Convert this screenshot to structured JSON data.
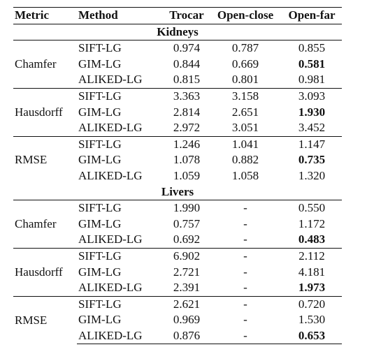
{
  "headers": {
    "metric": "Metric",
    "method": "Method",
    "trocar": "Trocar",
    "open_close": "Open-close",
    "open_far": "Open-far"
  },
  "sections": [
    {
      "title": "Kidneys",
      "groups": [
        {
          "metric": "Chamfer",
          "rows": [
            {
              "method": "SIFT-LG",
              "trocar": "0.974",
              "open_close": "0.787",
              "open_far": "0.855",
              "bold_open_far": false
            },
            {
              "method": "GIM-LG",
              "trocar": "0.844",
              "open_close": "0.669",
              "open_far": "0.581",
              "bold_open_far": true
            },
            {
              "method": "ALIKED-LG",
              "trocar": "0.815",
              "open_close": "0.801",
              "open_far": "0.981",
              "bold_open_far": false
            }
          ]
        },
        {
          "metric": "Hausdorff",
          "rows": [
            {
              "method": "SIFT-LG",
              "trocar": "3.363",
              "open_close": "3.158",
              "open_far": "3.093",
              "bold_open_far": false
            },
            {
              "method": "GIM-LG",
              "trocar": "2.814",
              "open_close": "2.651",
              "open_far": "1.930",
              "bold_open_far": true
            },
            {
              "method": "ALIKED-LG",
              "trocar": "2.972",
              "open_close": "3.051",
              "open_far": "3.452",
              "bold_open_far": false
            }
          ]
        },
        {
          "metric": "RMSE",
          "rows": [
            {
              "method": "SIFT-LG",
              "trocar": "1.246",
              "open_close": "1.041",
              "open_far": "1.147",
              "bold_open_far": false
            },
            {
              "method": "GIM-LG",
              "trocar": "1.078",
              "open_close": "0.882",
              "open_far": "0.735",
              "bold_open_far": true
            },
            {
              "method": "ALIKED-LG",
              "trocar": "1.059",
              "open_close": "1.058",
              "open_far": "1.320",
              "bold_open_far": false
            }
          ]
        }
      ]
    },
    {
      "title": "Livers",
      "groups": [
        {
          "metric": "Chamfer",
          "rows": [
            {
              "method": "SIFT-LG",
              "trocar": "1.990",
              "open_close": "-",
              "open_far": "0.550",
              "bold_open_far": false
            },
            {
              "method": "GIM-LG",
              "trocar": "0.757",
              "open_close": "-",
              "open_far": "1.172",
              "bold_open_far": false
            },
            {
              "method": "ALIKED-LG",
              "trocar": "0.692",
              "open_close": "-",
              "open_far": "0.483",
              "bold_open_far": true
            }
          ]
        },
        {
          "metric": "Hausdorff",
          "rows": [
            {
              "method": "SIFT-LG",
              "trocar": "6.902",
              "open_close": "-",
              "open_far": "2.112",
              "bold_open_far": false
            },
            {
              "method": "GIM-LG",
              "trocar": "2.721",
              "open_close": "-",
              "open_far": "4.181",
              "bold_open_far": false
            },
            {
              "method": "ALIKED-LG",
              "trocar": "2.391",
              "open_close": "-",
              "open_far": "1.973",
              "bold_open_far": true
            }
          ]
        },
        {
          "metric": "RMSE",
          "rows": [
            {
              "method": "SIFT-LG",
              "trocar": "2.621",
              "open_close": "-",
              "open_far": "0.720",
              "bold_open_far": false
            },
            {
              "method": "GIM-LG",
              "trocar": "0.969",
              "open_close": "-",
              "open_far": "1.530",
              "bold_open_far": false
            },
            {
              "method": "ALIKED-LG",
              "trocar": "0.876",
              "open_close": "-",
              "open_far": "0.653",
              "bold_open_far": true
            }
          ]
        }
      ]
    }
  ]
}
